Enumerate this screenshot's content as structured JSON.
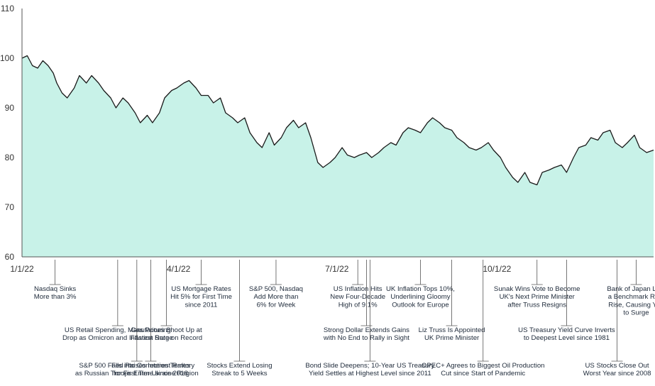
{
  "chart_data": {
    "type": "area",
    "title": "",
    "xlabel": "",
    "ylabel": "",
    "ylim": [
      60,
      110
    ],
    "yticks": [
      60,
      70,
      80,
      90,
      100,
      110
    ],
    "xlim": [
      "2022-01-01",
      "2022-12-30"
    ],
    "xticks": [
      {
        "date": "2022-01-01",
        "label": "1/1/22"
      },
      {
        "date": "2022-04-01",
        "label": "4/1/22"
      },
      {
        "date": "2022-07-01",
        "label": "7/1/22"
      },
      {
        "date": "2022-10-01",
        "label": "10/1/22"
      }
    ],
    "grid": false,
    "colors": {
      "fill": "#c8f2e8",
      "line": "#1a1a1a",
      "axis": "#555555"
    },
    "series": [
      {
        "x": [
          "2022-01-01",
          "2022-01-04",
          "2022-01-07",
          "2022-01-10",
          "2022-01-13",
          "2022-01-16",
          "2022-01-19",
          "2022-01-21",
          "2022-01-24",
          "2022-01-27",
          "2022-01-31",
          "2022-02-03",
          "2022-02-07",
          "2022-02-10",
          "2022-02-14",
          "2022-02-17",
          "2022-02-21",
          "2022-02-24",
          "2022-02-28",
          "2022-03-03",
          "2022-03-07",
          "2022-03-10",
          "2022-03-14",
          "2022-03-17",
          "2022-03-21",
          "2022-03-24",
          "2022-03-28",
          "2022-03-31",
          "2022-04-04",
          "2022-04-07",
          "2022-04-11",
          "2022-04-14",
          "2022-04-18",
          "2022-04-21",
          "2022-04-25",
          "2022-04-28",
          "2022-05-02",
          "2022-05-05",
          "2022-05-09",
          "2022-05-12",
          "2022-05-16",
          "2022-05-19",
          "2022-05-23",
          "2022-05-26",
          "2022-05-30",
          "2022-06-02",
          "2022-06-06",
          "2022-06-09",
          "2022-06-13",
          "2022-06-16",
          "2022-06-20",
          "2022-06-23",
          "2022-06-27",
          "2022-06-30",
          "2022-07-04",
          "2022-07-07",
          "2022-07-11",
          "2022-07-14",
          "2022-07-18",
          "2022-07-21",
          "2022-07-25",
          "2022-07-28",
          "2022-08-01",
          "2022-08-04",
          "2022-08-08",
          "2022-08-11",
          "2022-08-15",
          "2022-08-18",
          "2022-08-22",
          "2022-08-25",
          "2022-08-29",
          "2022-09-01",
          "2022-09-05",
          "2022-09-08",
          "2022-09-12",
          "2022-09-15",
          "2022-09-19",
          "2022-09-22",
          "2022-09-26",
          "2022-09-29",
          "2022-10-03",
          "2022-10-06",
          "2022-10-10",
          "2022-10-13",
          "2022-10-17",
          "2022-10-20",
          "2022-10-24",
          "2022-10-27",
          "2022-10-31",
          "2022-11-03",
          "2022-11-07",
          "2022-11-10",
          "2022-11-14",
          "2022-11-17",
          "2022-11-21",
          "2022-11-24",
          "2022-11-28",
          "2022-12-01",
          "2022-12-05",
          "2022-12-08",
          "2022-12-12",
          "2022-12-15",
          "2022-12-19",
          "2022-12-22",
          "2022-12-26",
          "2022-12-30"
        ],
        "y": [
          100,
          100.5,
          98.5,
          98,
          99.5,
          98.5,
          97,
          95,
          93,
          92,
          94,
          96.5,
          95,
          96.5,
          95,
          93.5,
          92,
          90,
          92,
          91,
          89,
          87,
          88.5,
          87,
          89,
          92,
          93.5,
          94,
          95,
          95.5,
          94,
          92.5,
          92.5,
          91,
          92,
          89,
          88,
          87,
          88,
          85,
          83,
          82,
          85,
          82.5,
          84,
          86,
          87.5,
          86,
          87,
          84,
          79,
          78,
          79,
          80,
          82,
          80.5,
          80,
          80.5,
          81,
          80,
          81,
          82,
          83,
          82.5,
          85,
          86,
          85.5,
          85,
          87,
          88,
          87,
          86,
          85.5,
          84,
          83,
          82,
          81.5,
          82,
          83,
          81.5,
          80,
          78,
          76,
          75,
          77,
          75,
          74.5,
          77,
          77.5,
          78,
          78.5,
          77,
          80,
          82,
          82.5,
          84,
          83.5,
          85,
          85.5,
          83,
          82,
          83,
          84.5,
          82,
          81,
          81.5
        ]
      }
    ],
    "annotations": [
      {
        "date": "2022-01-20",
        "lines": [
          "Nasdaq Sinks",
          "More than 3%"
        ]
      },
      {
        "date": "2022-02-25",
        "lines": [
          "US Retail Spending, Manufacturing",
          "Drop as Omicron and Inflation Surge"
        ]
      },
      {
        "date": "2022-03-08",
        "lines": [
          "S&P 500 Falls into Correction Territory",
          "as Russian Troops Enter Ukraine Region"
        ]
      },
      {
        "date": "2022-03-16",
        "lines": [
          "Fed Raises Interest Rates",
          "for First Time since 2018"
        ]
      },
      {
        "date": "2022-03-25",
        "lines": [
          "Gas Prices Shoot Up at",
          "Fastest Rate on Record"
        ]
      },
      {
        "date": "2022-04-14",
        "lines": [
          "US Mortgage Rates",
          "Hit 5% for First Time",
          "since 2011"
        ]
      },
      {
        "date": "2022-05-06",
        "lines": [
          "Stocks Extend Losing",
          "Streak to 5 Weeks"
        ]
      },
      {
        "date": "2022-05-27",
        "lines": [
          "S&P 500, Nasdaq",
          "Add More than",
          "6% for Week"
        ]
      },
      {
        "date": "2022-07-13",
        "lines": [
          "US Inflation Hits",
          "New Four-Decade",
          "High of 9.1%"
        ]
      },
      {
        "date": "2022-07-18",
        "lines": [
          "Strong Dollar Extends Gains",
          "with No End to Rally in Sight"
        ]
      },
      {
        "date": "2022-07-20",
        "lines": [
          "Bond Slide Deepens; 10-Year US Treasury",
          "Yield Settles at Highest Level since 2011"
        ]
      },
      {
        "date": "2022-08-18",
        "lines": [
          "UK Inflation Tops 10%,",
          "Underlining Gloomy",
          "Outlook for Europe"
        ]
      },
      {
        "date": "2022-09-05",
        "lines": [
          "Liz Truss Is Appointed",
          "UK Prime Minister"
        ]
      },
      {
        "date": "2022-09-23",
        "lines": [
          "OPEC+ Agrees to Biggest Oil Production",
          "Cut since Start of Pandemic"
        ]
      },
      {
        "date": "2022-10-24",
        "lines": [
          "Sunak Wins Vote to Become",
          "UK's Next Prime Minister",
          "after Truss Resigns"
        ]
      },
      {
        "date": "2022-11-10",
        "lines": [
          "US Treasury Yield Curve Inverts",
          "to Deepest Level since 1981"
        ]
      },
      {
        "date": "2022-12-09",
        "lines": [
          "US Stocks Close Out",
          "Worst Year since 2008"
        ]
      },
      {
        "date": "2022-12-20",
        "lines": [
          "Bank of Japan Lets",
          "a Benchmark Rate",
          "Rise, Causing Yen",
          "to Surge"
        ]
      }
    ]
  }
}
